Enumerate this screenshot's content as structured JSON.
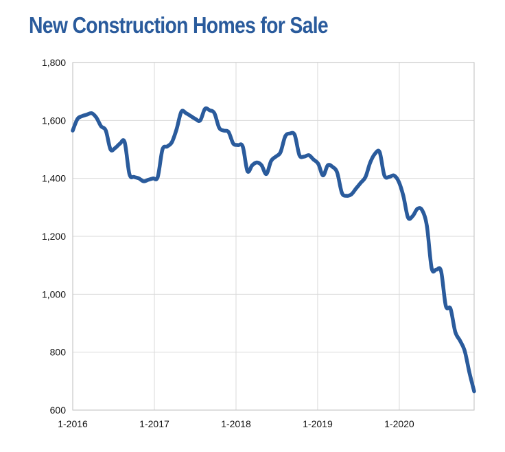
{
  "chart_data": {
    "type": "line",
    "title": "New Construction Homes for Sale",
    "xlabel": "",
    "ylabel": "",
    "ylim": [
      600,
      1800
    ],
    "yticks": [
      "1,800",
      "1,600",
      "1,400",
      "1,200",
      "1,000",
      "800",
      "600"
    ],
    "ytick_values": [
      1800,
      1600,
      1400,
      1200,
      1000,
      800,
      600
    ],
    "xticks": [
      "1-2016",
      "1-2017",
      "1-2018",
      "1-2019",
      "1-2020"
    ],
    "x_start": "1-2016",
    "x_end": "12-2020",
    "grid": true,
    "line_color": "#2a5b9c",
    "series": [
      {
        "values": [
          1565,
          1605,
          1615,
          1620,
          1625,
          1610,
          1580,
          1565,
          1500,
          1505,
          1520,
          1525,
          1415,
          1405,
          1400,
          1390,
          1395,
          1400,
          1405,
          1500,
          1510,
          1525,
          1570,
          1630,
          1625,
          1615,
          1605,
          1600,
          1640,
          1635,
          1625,
          1575,
          1565,
          1560,
          1520,
          1515,
          1510,
          1425,
          1445,
          1455,
          1445,
          1415,
          1460,
          1475,
          1490,
          1545,
          1555,
          1550,
          1480,
          1475,
          1480,
          1465,
          1450,
          1410,
          1445,
          1440,
          1420,
          1350,
          1340,
          1345,
          1365,
          1385,
          1405,
          1455,
          1485,
          1490,
          1410,
          1405,
          1410,
          1390,
          1340,
          1265,
          1270,
          1295,
          1290,
          1235,
          1090,
          1085,
          1080,
          960,
          950,
          870,
          840,
          805,
          730,
          665
        ]
      }
    ]
  }
}
